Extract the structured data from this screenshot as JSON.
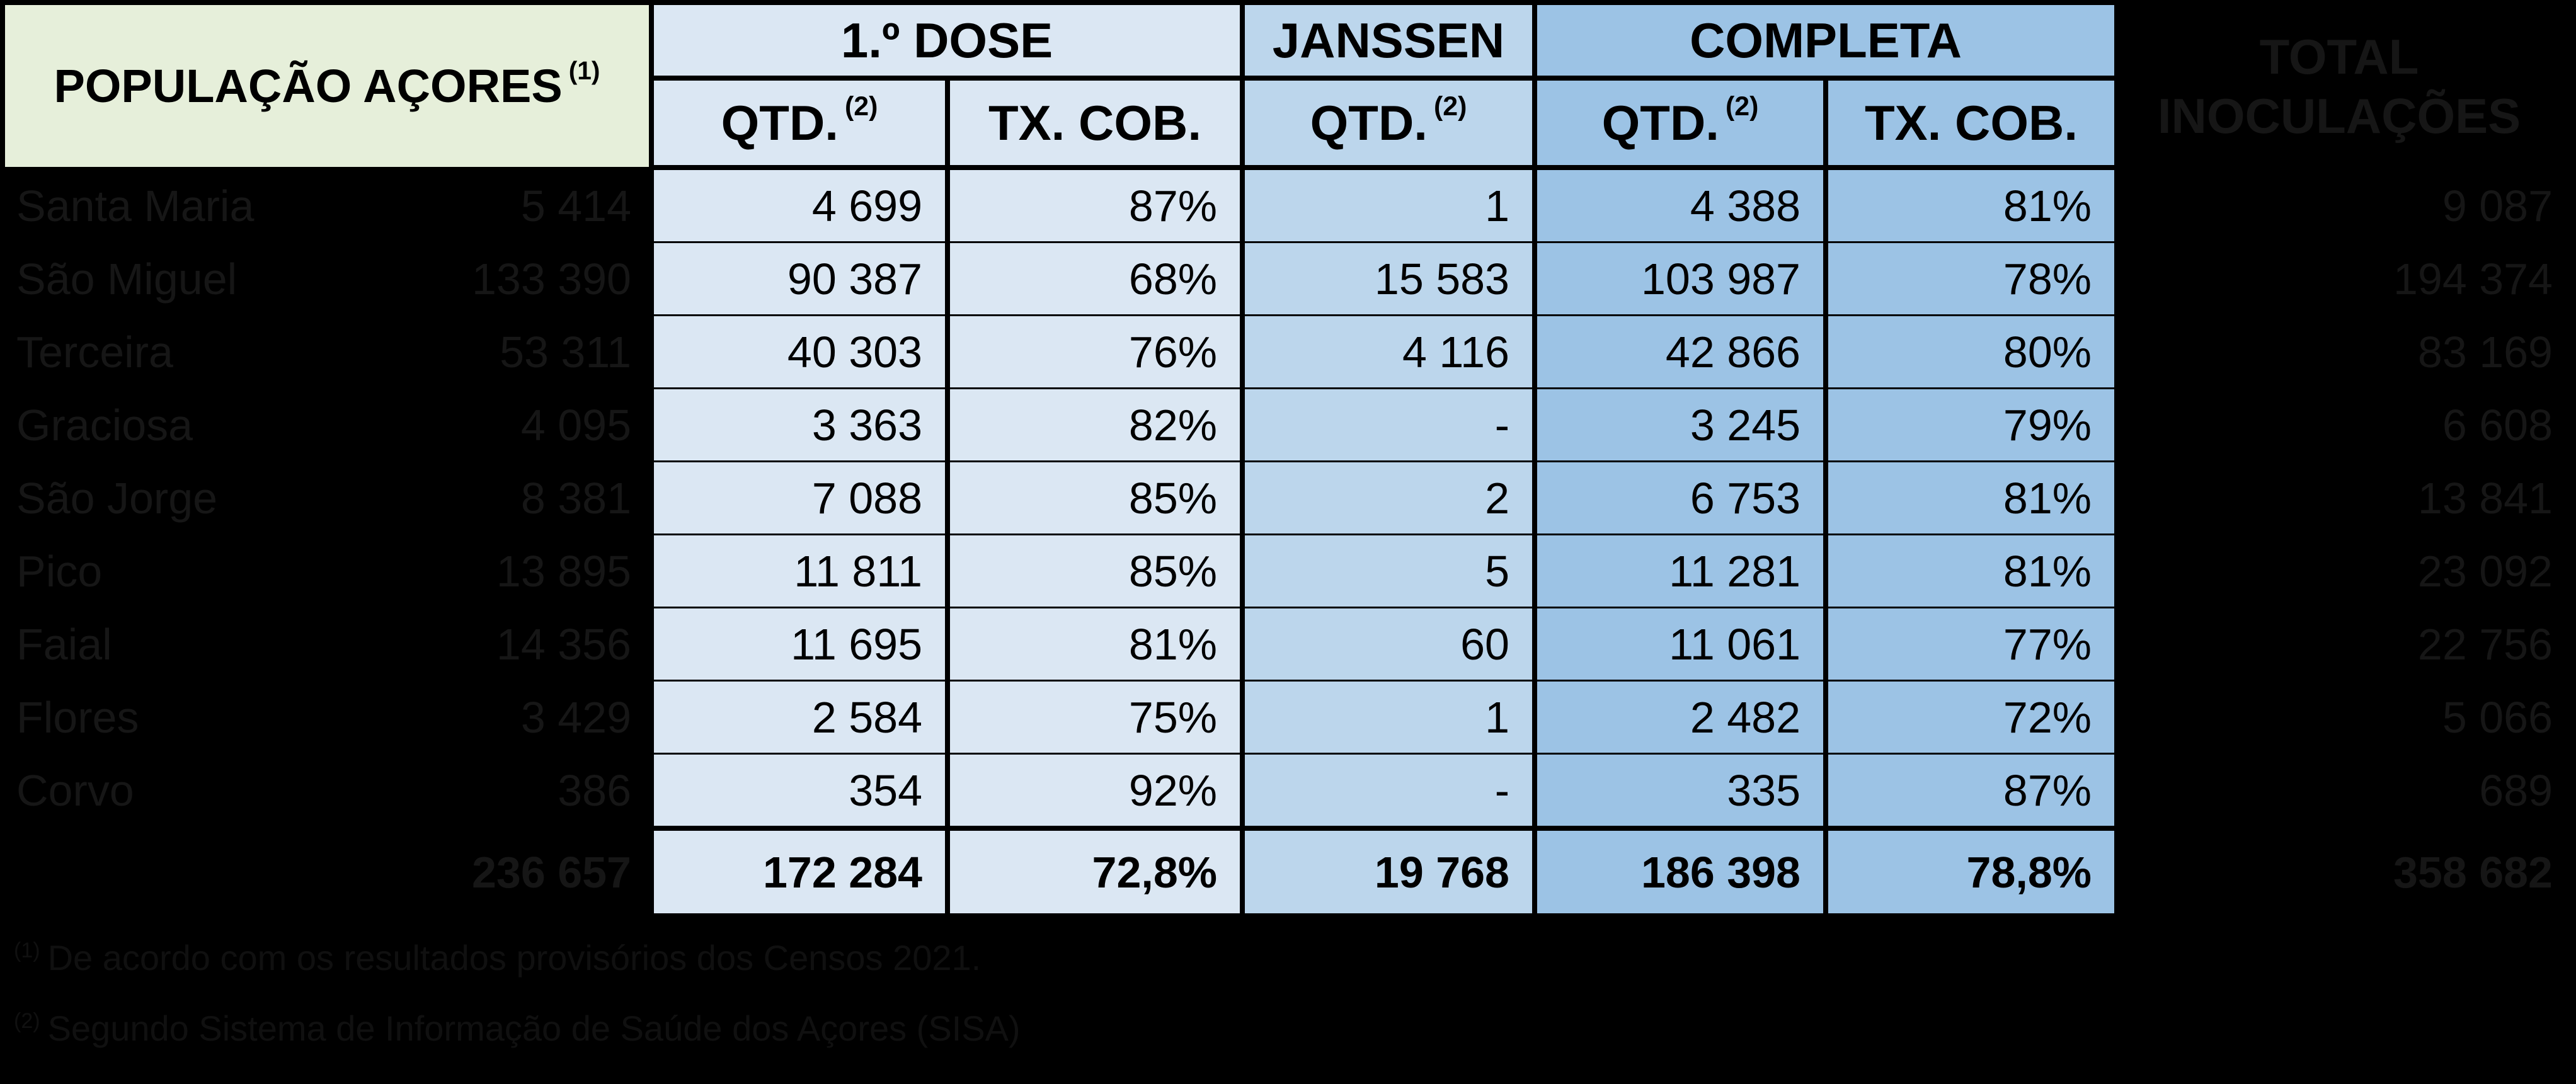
{
  "colors": {
    "background": "#000000",
    "green_header_bg": "#e6efda",
    "dose1_bg": "#dbe7f3",
    "janssen_bg": "#bcd6ec",
    "completa_bg": "#9cc3e5",
    "cell_text": "#000000",
    "hidden_text": "#161616",
    "footnote_text": "#101010"
  },
  "header": {
    "population_title": "POPULAÇÃO AÇORES",
    "population_title_sup": "(1)",
    "groups": [
      {
        "label": "1.º DOSE"
      },
      {
        "label": "JANSSEN"
      },
      {
        "label": "COMPLETA"
      }
    ],
    "subheaders": [
      {
        "label": "QTD.",
        "sup": "(2)"
      },
      {
        "label": "TX. COB.",
        "sup": ""
      },
      {
        "label": "QTD.",
        "sup": "(2)"
      },
      {
        "label": "QTD.",
        "sup": "(2)"
      },
      {
        "label": "TX. COB.",
        "sup": ""
      }
    ],
    "hidden_total_header": "TOTAL INOCULAÇÕES"
  },
  "rows": [
    {
      "island": "Santa Maria",
      "population": "5 414",
      "dose1_qtd": "4 699",
      "dose1_tx": "87%",
      "janssen_qtd": "1",
      "completa_qtd": "4 388",
      "completa_tx": "81%",
      "total_inoculacoes": "9 087"
    },
    {
      "island": "São Miguel",
      "population": "133 390",
      "dose1_qtd": "90 387",
      "dose1_tx": "68%",
      "janssen_qtd": "15 583",
      "completa_qtd": "103 987",
      "completa_tx": "78%",
      "total_inoculacoes": "194 374"
    },
    {
      "island": "Terceira",
      "population": "53 311",
      "dose1_qtd": "40 303",
      "dose1_tx": "76%",
      "janssen_qtd": "4 116",
      "completa_qtd": "42 866",
      "completa_tx": "80%",
      "total_inoculacoes": "83 169"
    },
    {
      "island": "Graciosa",
      "population": "4 095",
      "dose1_qtd": "3 363",
      "dose1_tx": "82%",
      "janssen_qtd": "-",
      "completa_qtd": "3 245",
      "completa_tx": "79%",
      "total_inoculacoes": "6 608"
    },
    {
      "island": "São Jorge",
      "population": "8 381",
      "dose1_qtd": "7 088",
      "dose1_tx": "85%",
      "janssen_qtd": "2",
      "completa_qtd": "6 753",
      "completa_tx": "81%",
      "total_inoculacoes": "13 841"
    },
    {
      "island": "Pico",
      "population": "13 895",
      "dose1_qtd": "11 811",
      "dose1_tx": "85%",
      "janssen_qtd": "5",
      "completa_qtd": "11 281",
      "completa_tx": "81%",
      "total_inoculacoes": "23 092"
    },
    {
      "island": "Faial",
      "population": "14 356",
      "dose1_qtd": "11 695",
      "dose1_tx": "81%",
      "janssen_qtd": "60",
      "completa_qtd": "11 061",
      "completa_tx": "77%",
      "total_inoculacoes": "22 756"
    },
    {
      "island": "Flores",
      "population": "3 429",
      "dose1_qtd": "2 584",
      "dose1_tx": "75%",
      "janssen_qtd": "1",
      "completa_qtd": "2 482",
      "completa_tx": "72%",
      "total_inoculacoes": "5 066"
    },
    {
      "island": "Corvo",
      "population": "386",
      "dose1_qtd": "354",
      "dose1_tx": "92%",
      "janssen_qtd": "-",
      "completa_qtd": "335",
      "completa_tx": "87%",
      "total_inoculacoes": "689"
    }
  ],
  "totals": {
    "population": "236 657",
    "dose1_qtd": "172 284",
    "dose1_tx": "72,8%",
    "janssen_qtd": "19 768",
    "completa_qtd": "186 398",
    "completa_tx": "78,8%",
    "total_inoculacoes": "358 682"
  },
  "footnotes": [
    {
      "marker": "(1)",
      "text": "De acordo com os resultados provisórios dos Censos 2021."
    },
    {
      "marker": "(2)",
      "text": "Segundo Sistema de Informação de Saúde dos Açores (SISA)"
    }
  ]
}
